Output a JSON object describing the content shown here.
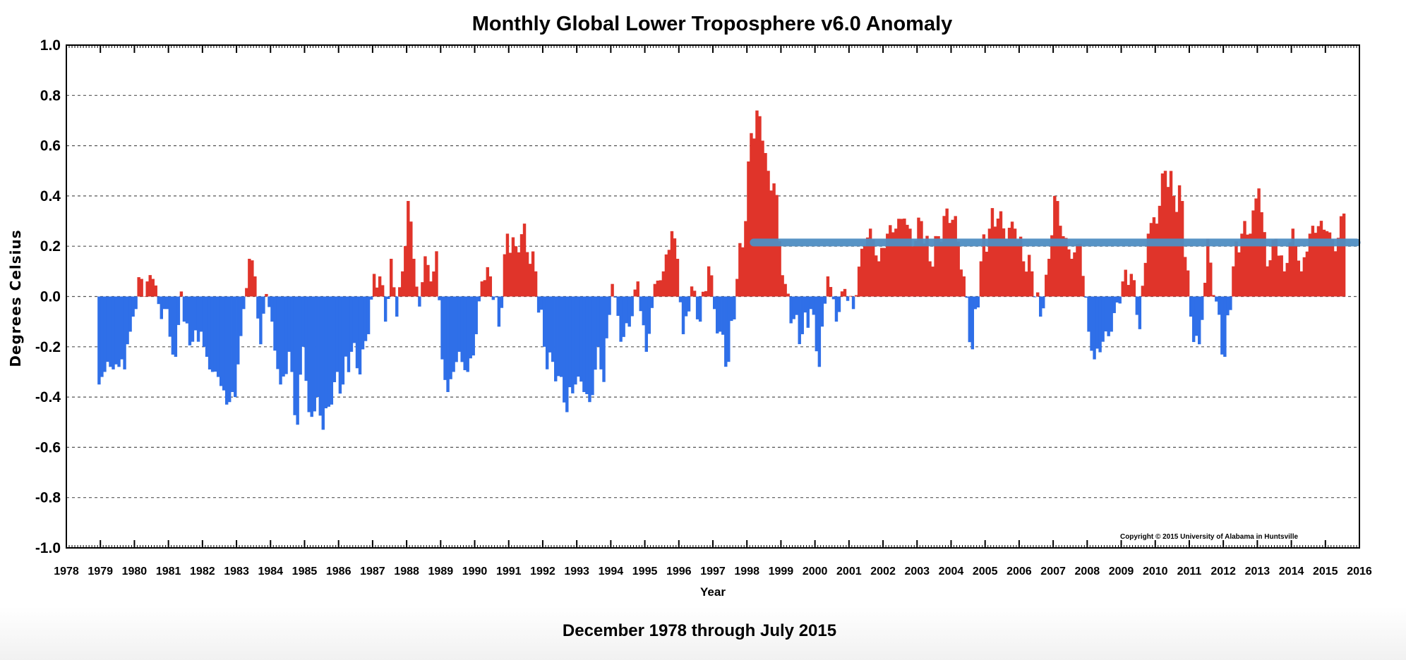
{
  "chart_data": {
    "type": "bar",
    "title": "Monthly Global Lower Troposphere v6.0 Anomaly",
    "subtitle": "December 1978 through July 2015",
    "xlabel": "Year",
    "ylabel": "Degrees Celsius",
    "copyright": "Copyright © 2015 University of Alabama in Huntsville",
    "xlim": [
      1978,
      2016
    ],
    "ylim": [
      -1.0,
      1.0
    ],
    "x_ticks": [
      "1978",
      "1979",
      "1980",
      "1981",
      "1982",
      "1983",
      "1984",
      "1985",
      "1986",
      "1987",
      "1988",
      "1989",
      "1990",
      "1991",
      "1992",
      "1993",
      "1994",
      "1995",
      "1996",
      "1997",
      "1998",
      "1999",
      "2000",
      "2001",
      "2002",
      "2003",
      "2004",
      "2005",
      "2006",
      "2007",
      "2008",
      "2009",
      "2010",
      "2011",
      "2012",
      "2013",
      "2014",
      "2015",
      "2016"
    ],
    "y_ticks": [
      "1.0",
      "0.8",
      "0.6",
      "0.4",
      "0.2",
      "0.0",
      "-0.2",
      "-0.4",
      "-0.6",
      "-0.8",
      "-1.0"
    ],
    "grid": "horizontal-dashed",
    "colors": {
      "positive": "#e0342a",
      "negative": "#2f6fe8",
      "trend": "#4f8ec2"
    },
    "trend_line": {
      "x_start": 1998.2,
      "x_end": 2016.0,
      "value": 0.215
    },
    "start": "1978-12",
    "anchors": [
      [
        "1978-12",
        -0.35
      ],
      [
        "1979-01",
        -0.32
      ],
      [
        "1979-02",
        -0.3
      ],
      [
        "1979-03",
        -0.26
      ],
      [
        "1979-04",
        -0.28
      ],
      [
        "1979-05",
        -0.29
      ],
      [
        "1979-06",
        -0.27
      ],
      [
        "1979-07",
        -0.28
      ],
      [
        "1979-08",
        -0.25
      ],
      [
        "1979-09",
        -0.29
      ],
      [
        "1979-10",
        -0.19
      ],
      [
        "1979-11",
        -0.14
      ],
      [
        "1979-12",
        -0.08
      ],
      [
        "1980-01",
        -0.05
      ],
      [
        "1980-03",
        0.07
      ],
      [
        "1980-04",
        0.0
      ],
      [
        "1980-05",
        0.06
      ],
      [
        "1980-07",
        0.07
      ],
      [
        "1980-09",
        -0.03
      ],
      [
        "1980-12",
        -0.05
      ],
      [
        "1981-01",
        -0.16
      ],
      [
        "1981-03",
        -0.24
      ],
      [
        "1981-05",
        0.02
      ],
      [
        "1981-06",
        -0.1
      ],
      [
        "1981-09",
        -0.18
      ],
      [
        "1981-12",
        -0.14
      ],
      [
        "1982-01",
        -0.2
      ],
      [
        "1982-04",
        -0.3
      ],
      [
        "1982-06",
        -0.32
      ],
      [
        "1982-09",
        -0.43
      ],
      [
        "1982-11",
        -0.38
      ],
      [
        "1982-12",
        -0.4
      ],
      [
        "1983-01",
        -0.27
      ],
      [
        "1983-03",
        -0.05
      ],
      [
        "1983-05",
        0.15
      ],
      [
        "1983-07",
        0.08
      ],
      [
        "1983-09",
        -0.19
      ],
      [
        "1983-11",
        0.01
      ],
      [
        "1984-01",
        -0.1
      ],
      [
        "1984-04",
        -0.35
      ],
      [
        "1984-07",
        -0.22
      ],
      [
        "1984-10",
        -0.51
      ],
      [
        "1984-12",
        -0.2
      ],
      [
        "1985-02",
        -0.46
      ],
      [
        "1985-05",
        -0.4
      ],
      [
        "1985-07",
        -0.53
      ],
      [
        "1985-10",
        -0.43
      ],
      [
        "1985-12",
        -0.3
      ],
      [
        "1986-02",
        -0.35
      ],
      [
        "1986-05",
        -0.22
      ],
      [
        "1986-08",
        -0.31
      ],
      [
        "1986-11",
        -0.15
      ],
      [
        "1987-01",
        0.09
      ],
      [
        "1987-03",
        0.08
      ],
      [
        "1987-05",
        -0.1
      ],
      [
        "1987-07",
        0.15
      ],
      [
        "1987-09",
        -0.08
      ],
      [
        "1987-11",
        0.1
      ],
      [
        "1988-01",
        0.38
      ],
      [
        "1988-03",
        0.15
      ],
      [
        "1988-05",
        -0.04
      ],
      [
        "1988-07",
        0.16
      ],
      [
        "1988-09",
        0.06
      ],
      [
        "1988-11",
        0.18
      ],
      [
        "1989-01",
        -0.25
      ],
      [
        "1989-03",
        -0.38
      ],
      [
        "1989-05",
        -0.3
      ],
      [
        "1989-07",
        -0.22
      ],
      [
        "1989-10",
        -0.3
      ],
      [
        "1990-01",
        -0.15
      ],
      [
        "1990-03",
        0.06
      ],
      [
        "1990-06",
        0.08
      ],
      [
        "1990-09",
        -0.12
      ],
      [
        "1990-12",
        0.25
      ],
      [
        "1991-03",
        0.2
      ],
      [
        "1991-06",
        0.29
      ],
      [
        "1991-08",
        0.13
      ],
      [
        "1991-10",
        0.1
      ],
      [
        "1992-01",
        -0.2
      ],
      [
        "1992-04",
        -0.26
      ],
      [
        "1992-07",
        -0.32
      ],
      [
        "1992-09",
        -0.46
      ],
      [
        "1992-12",
        -0.35
      ],
      [
        "1993-03",
        -0.38
      ],
      [
        "1993-05",
        -0.42
      ],
      [
        "1993-08",
        -0.2
      ],
      [
        "1993-10",
        -0.34
      ],
      [
        "1994-01",
        0.05
      ],
      [
        "1994-04",
        -0.18
      ],
      [
        "1994-07",
        -0.12
      ],
      [
        "1994-10",
        0.06
      ],
      [
        "1995-01",
        -0.22
      ],
      [
        "1995-04",
        0.05
      ],
      [
        "1995-07",
        0.1
      ],
      [
        "1995-10",
        0.26
      ],
      [
        "1995-12",
        0.15
      ],
      [
        "1996-02",
        -0.15
      ],
      [
        "1996-05",
        0.04
      ],
      [
        "1996-08",
        -0.1
      ],
      [
        "1996-11",
        0.12
      ],
      [
        "1997-01",
        -0.05
      ],
      [
        "1997-03",
        -0.14
      ],
      [
        "1997-06",
        -0.26
      ],
      [
        "1997-09",
        0.07
      ],
      [
        "1997-12",
        0.3
      ],
      [
        "1998-02",
        0.65
      ],
      [
        "1998-04",
        0.74
      ],
      [
        "1998-06",
        0.62
      ],
      [
        "1998-08",
        0.5
      ],
      [
        "1998-10",
        0.45
      ],
      [
        "1998-12",
        0.22
      ],
      [
        "1999-02",
        0.05
      ],
      [
        "1999-05",
        -0.09
      ],
      [
        "1999-08",
        -0.15
      ],
      [
        "1999-11",
        -0.05
      ],
      [
        "2000-02",
        -0.28
      ],
      [
        "2000-05",
        0.08
      ],
      [
        "2000-08",
        -0.1
      ],
      [
        "2000-11",
        0.03
      ],
      [
        "2001-02",
        -0.05
      ],
      [
        "2001-05",
        0.19
      ],
      [
        "2001-08",
        0.27
      ],
      [
        "2001-11",
        0.14
      ],
      [
        "2002-02",
        0.25
      ],
      [
        "2002-05",
        0.27
      ],
      [
        "2002-08",
        0.31
      ],
      [
        "2002-11",
        0.2
      ],
      [
        "2003-02",
        0.3
      ],
      [
        "2003-05",
        0.14
      ],
      [
        "2003-08",
        0.24
      ],
      [
        "2003-11",
        0.35
      ],
      [
        "2004-02",
        0.32
      ],
      [
        "2004-05",
        0.08
      ],
      [
        "2004-08",
        -0.21
      ],
      [
        "2004-11",
        0.14
      ],
      [
        "2005-02",
        0.27
      ],
      [
        "2005-05",
        0.31
      ],
      [
        "2005-08",
        0.23
      ],
      [
        "2005-11",
        0.27
      ],
      [
        "2006-02",
        0.14
      ],
      [
        "2006-05",
        0.1
      ],
      [
        "2006-08",
        -0.08
      ],
      [
        "2006-11",
        0.15
      ],
      [
        "2007-01",
        0.4
      ],
      [
        "2007-04",
        0.24
      ],
      [
        "2007-07",
        0.15
      ],
      [
        "2007-10",
        0.21
      ],
      [
        "2008-01",
        -0.14
      ],
      [
        "2008-03",
        -0.25
      ],
      [
        "2008-06",
        -0.18
      ],
      [
        "2008-09",
        -0.14
      ],
      [
        "2009-01",
        0.06
      ],
      [
        "2009-04",
        0.09
      ],
      [
        "2009-07",
        -0.13
      ],
      [
        "2009-10",
        0.25
      ],
      [
        "2010-01",
        0.29
      ],
      [
        "2010-04",
        0.5
      ],
      [
        "2010-07",
        0.4
      ],
      [
        "2010-10",
        0.38
      ],
      [
        "2011-01",
        -0.08
      ],
      [
        "2011-04",
        -0.19
      ],
      [
        "2011-07",
        0.23
      ],
      [
        "2011-10",
        -0.02
      ],
      [
        "2012-01",
        -0.24
      ],
      [
        "2012-04",
        0.12
      ],
      [
        "2012-07",
        0.25
      ],
      [
        "2012-10",
        0.25
      ],
      [
        "2013-01",
        0.43
      ],
      [
        "2013-04",
        0.12
      ],
      [
        "2013-07",
        0.23
      ],
      [
        "2013-10",
        0.1
      ],
      [
        "2014-01",
        0.27
      ],
      [
        "2014-04",
        0.1
      ],
      [
        "2014-07",
        0.25
      ],
      [
        "2014-10",
        0.28
      ],
      [
        "2015-01",
        0.26
      ],
      [
        "2015-04",
        0.18
      ],
      [
        "2015-07",
        0.33
      ]
    ]
  }
}
